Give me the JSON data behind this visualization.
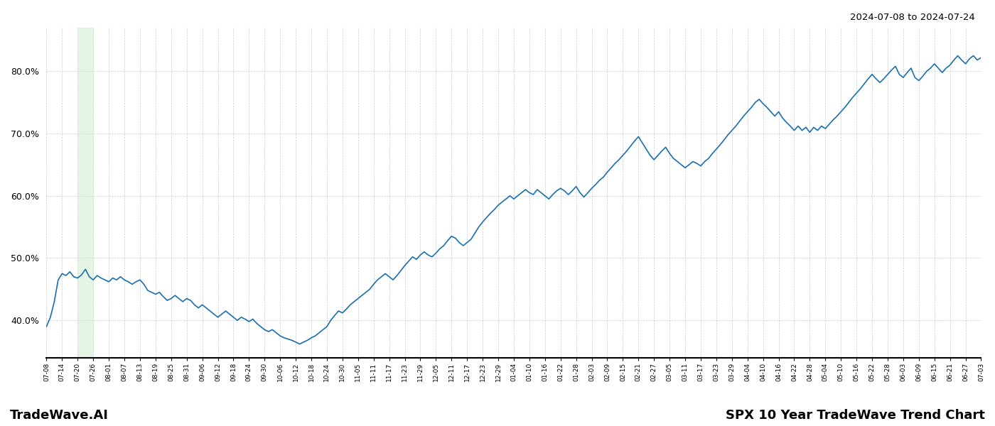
{
  "title_top_right": "2024-07-08 to 2024-07-24",
  "title_bottom_left": "TradeWave.AI",
  "title_bottom_right": "SPX 10 Year TradeWave Trend Chart",
  "line_color": "#1a6faf",
  "line_width": 1.2,
  "shade_color": "#d6edd6",
  "shade_alpha": 0.6,
  "ylim": [
    34,
    87
  ],
  "yticks": [
    40,
    50,
    60,
    70,
    80
  ],
  "background_color": "#ffffff",
  "grid_color": "#cccccc",
  "x_labels": [
    "07-08",
    "07-14",
    "07-20",
    "07-26",
    "08-01",
    "08-07",
    "08-13",
    "08-19",
    "08-25",
    "08-31",
    "09-06",
    "09-12",
    "09-18",
    "09-24",
    "09-30",
    "10-06",
    "10-12",
    "10-18",
    "10-24",
    "10-30",
    "11-05",
    "11-11",
    "11-17",
    "11-23",
    "11-29",
    "12-05",
    "12-11",
    "12-17",
    "12-23",
    "12-29",
    "01-04",
    "01-10",
    "01-16",
    "01-22",
    "01-28",
    "02-03",
    "02-09",
    "02-15",
    "02-21",
    "02-27",
    "03-05",
    "03-11",
    "03-17",
    "03-23",
    "03-29",
    "04-04",
    "04-10",
    "04-16",
    "04-22",
    "04-28",
    "05-04",
    "05-10",
    "05-16",
    "05-22",
    "05-28",
    "06-03",
    "06-09",
    "06-15",
    "06-21",
    "06-27",
    "07-03"
  ],
  "shade_x_start_label": "07-20",
  "shade_x_end_label": "07-26",
  "y_values": [
    39.0,
    40.5,
    43.0,
    46.5,
    47.5,
    47.2,
    47.8,
    47.0,
    46.8,
    47.3,
    48.2,
    47.0,
    46.5,
    47.2,
    46.8,
    46.5,
    46.2,
    46.8,
    46.5,
    47.0,
    46.5,
    46.2,
    45.8,
    46.2,
    46.5,
    45.8,
    44.8,
    44.5,
    44.2,
    44.5,
    43.8,
    43.2,
    43.5,
    44.0,
    43.5,
    43.0,
    43.5,
    43.2,
    42.5,
    42.0,
    42.5,
    42.0,
    41.5,
    41.0,
    40.5,
    41.0,
    41.5,
    41.0,
    40.5,
    40.0,
    40.5,
    40.2,
    39.8,
    40.2,
    39.5,
    39.0,
    38.5,
    38.2,
    38.5,
    38.0,
    37.5,
    37.2,
    37.0,
    36.8,
    36.5,
    36.2,
    36.5,
    36.8,
    37.2,
    37.5,
    38.0,
    38.5,
    39.0,
    40.0,
    40.8,
    41.5,
    41.2,
    41.8,
    42.5,
    43.0,
    43.5,
    44.0,
    44.5,
    45.0,
    45.8,
    46.5,
    47.0,
    47.5,
    47.0,
    46.5,
    47.2,
    48.0,
    48.8,
    49.5,
    50.2,
    49.8,
    50.5,
    51.0,
    50.5,
    50.2,
    50.8,
    51.5,
    52.0,
    52.8,
    53.5,
    53.2,
    52.5,
    52.0,
    52.5,
    53.0,
    54.0,
    55.0,
    55.8,
    56.5,
    57.2,
    57.8,
    58.5,
    59.0,
    59.5,
    60.0,
    59.5,
    60.0,
    60.5,
    61.0,
    60.5,
    60.2,
    61.0,
    60.5,
    60.0,
    59.5,
    60.2,
    60.8,
    61.2,
    60.8,
    60.2,
    60.8,
    61.5,
    60.5,
    59.8,
    60.5,
    61.2,
    61.8,
    62.5,
    63.0,
    63.8,
    64.5,
    65.2,
    65.8,
    66.5,
    67.2,
    68.0,
    68.8,
    69.5,
    68.5,
    67.5,
    66.5,
    65.8,
    66.5,
    67.2,
    67.8,
    66.8,
    66.0,
    65.5,
    65.0,
    64.5,
    65.0,
    65.5,
    65.2,
    64.8,
    65.5,
    66.0,
    66.8,
    67.5,
    68.2,
    69.0,
    69.8,
    70.5,
    71.2,
    72.0,
    72.8,
    73.5,
    74.2,
    75.0,
    75.5,
    74.8,
    74.2,
    73.5,
    72.8,
    73.5,
    72.5,
    71.8,
    71.2,
    70.5,
    71.2,
    70.5,
    71.0,
    70.2,
    71.0,
    70.5,
    71.2,
    70.8,
    71.5,
    72.2,
    72.8,
    73.5,
    74.2,
    75.0,
    75.8,
    76.5,
    77.2,
    78.0,
    78.8,
    79.5,
    78.8,
    78.2,
    78.8,
    79.5,
    80.2,
    80.8,
    79.5,
    79.0,
    79.8,
    80.5,
    79.0,
    78.5,
    79.2,
    80.0,
    80.5,
    81.2,
    80.5,
    79.8,
    80.5,
    81.0,
    81.8,
    82.5,
    81.8,
    81.2,
    82.0,
    82.5,
    81.8,
    82.2
  ]
}
